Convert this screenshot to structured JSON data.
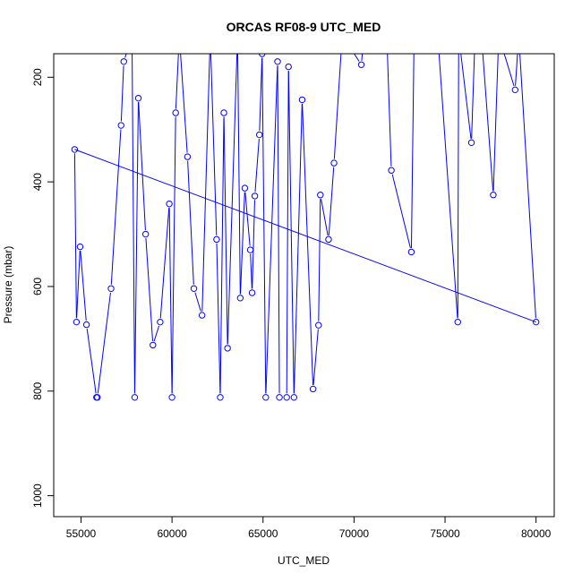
{
  "chart_data": {
    "type": "line",
    "title": "ORCAS RF08-9 UTC_MED",
    "xlabel": "UTC_MED",
    "ylabel": "Pressure (mbar)",
    "xlim": [
      53500,
      81000
    ],
    "ylim": [
      1040,
      155
    ],
    "y_reversed": true,
    "x_ticks": [
      55000,
      60000,
      65000,
      70000,
      75000,
      80000
    ],
    "y_ticks": [
      200,
      400,
      600,
      800,
      1000
    ],
    "grid": false,
    "legend": "none",
    "marker": "open-circle",
    "color": "#0000ff",
    "series": [
      {
        "x": [
          54650,
          54750,
          54950,
          55300,
          55850,
          55900,
          56650,
          57200,
          57350,
          57800,
          57950,
          58150,
          58550,
          58950,
          59350,
          59850,
          60000,
          60200,
          60400,
          60850,
          61200,
          61650,
          62100,
          62450,
          62650,
          62850,
          63050,
          63600,
          63750,
          64000,
          64300,
          64400,
          64550,
          64800,
          64950,
          65150,
          65800,
          65900,
          66300,
          66400,
          66700,
          67150,
          67750,
          68050,
          68150,
          68600,
          68900,
          69350,
          70400,
          70550,
          71800,
          72050,
          73150,
          73300,
          74450,
          74600,
          75700,
          75750,
          76450,
          76650,
          77000,
          77650,
          77950,
          78850,
          79050,
          80000
        ],
        "y": [
          338,
          668,
          524,
          673,
          812,
          812,
          604,
          292,
          170,
          120,
          812,
          240,
          500,
          712,
          668,
          442,
          812,
          268,
          120,
          352,
          604,
          655,
          120,
          510,
          812,
          268,
          718,
          120,
          622,
          412,
          530,
          612,
          427,
          310,
          155,
          812,
          170,
          812,
          812,
          180,
          812,
          243,
          796,
          674,
          425,
          510,
          364,
          120,
          176,
          120,
          120,
          378,
          534,
          120,
          120,
          120,
          668,
          120,
          325,
          120,
          120,
          425,
          120,
          224,
          120,
          668
        ]
      }
    ],
    "trend_segment": {
      "x": [
        54650,
        80000
      ],
      "y": [
        338,
        668
      ]
    }
  }
}
